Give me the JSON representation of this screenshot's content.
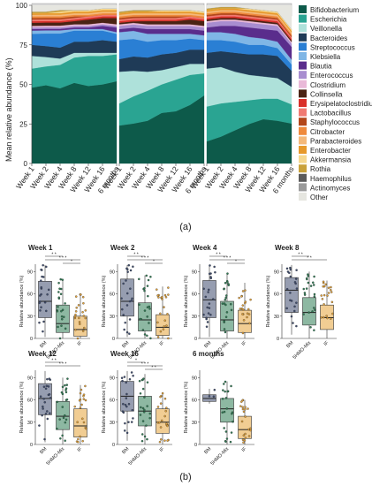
{
  "panel_a_label": "(a)",
  "panel_b_label": "(b)",
  "chart_data": [
    {
      "type": "area",
      "panels": [
        "BM",
        "5HMO-Mix",
        "IF"
      ],
      "x": [
        "Week 1",
        "Week 2",
        "Week 4",
        "Week 8",
        "Week 12",
        "Week 16",
        "6 months"
      ],
      "xlabel": "",
      "ylabel": "Mean relative abundance (%)",
      "yticks": [
        0,
        25,
        50,
        75,
        100
      ],
      "ylim": [
        0,
        100
      ],
      "taxa": [
        "Bifidobacterium",
        "Escherichia",
        "Veillonella",
        "Bacteroides",
        "Streptococcus",
        "Klebsiella",
        "Blautia",
        "Enterococcus",
        "Clostridium",
        "Collinsella",
        "Erysipelatoclostridium",
        "Lactobacillus",
        "Staphylococcus",
        "Citrobacter",
        "Parabacteroides",
        "Enterobacter",
        "Akkermansia",
        "Rothia",
        "Haemophilus",
        "Actinomyces",
        "Other"
      ],
      "colors": [
        "#0d5a4a",
        "#2aa492",
        "#aee1da",
        "#1f3b57",
        "#2a7fd4",
        "#7fb6e6",
        "#5a2d8c",
        "#a88dd0",
        "#e9b9d8",
        "#4a2314",
        "#d9302a",
        "#f07a72",
        "#b3471a",
        "#ef8a3c",
        "#f4b97a",
        "#e7992b",
        "#f6d88f",
        "#c9a13a",
        "#5b5b5b",
        "#9a9a9a",
        "#e6e6e0"
      ],
      "values": {
        "BM": [
          [
            48,
            12,
            8,
            7,
            7,
            2,
            1,
            1,
            1,
            2,
            1,
            1,
            1,
            1,
            1,
            1,
            0,
            1,
            0,
            0,
            4
          ],
          [
            50,
            12,
            6,
            7,
            8,
            2,
            1,
            1,
            1,
            2,
            1,
            1,
            1,
            1,
            1,
            1,
            0,
            1,
            0,
            0,
            4
          ],
          [
            48,
            15,
            4,
            7,
            9,
            2,
            1,
            1,
            1,
            2,
            1,
            1,
            1,
            1,
            1,
            1,
            1,
            1,
            0,
            0,
            3
          ],
          [
            51,
            16,
            3,
            7,
            7,
            1,
            1,
            1,
            1,
            2,
            1,
            1,
            1,
            1,
            1,
            1,
            1,
            0,
            0,
            0,
            3
          ],
          [
            49,
            19,
            2,
            7,
            7,
            1,
            1,
            1,
            1,
            3,
            1,
            1,
            0,
            1,
            1,
            1,
            1,
            0,
            0,
            0,
            3
          ],
          [
            50,
            18,
            2,
            8,
            6,
            1,
            2,
            1,
            1,
            3,
            1,
            1,
            0,
            1,
            1,
            1,
            1,
            0,
            0,
            0,
            2
          ],
          [
            52,
            17,
            1,
            7,
            5,
            1,
            3,
            1,
            1,
            4,
            1,
            1,
            0,
            1,
            1,
            1,
            1,
            0,
            0,
            0,
            2
          ]
        ],
        "5HMO-Mix": [
          [
            24,
            14,
            20,
            8,
            12,
            5,
            2,
            2,
            1,
            1,
            1,
            1,
            1,
            1,
            1,
            1,
            0,
            1,
            0,
            0,
            4
          ],
          [
            25,
            17,
            16,
            9,
            11,
            5,
            2,
            2,
            1,
            1,
            1,
            1,
            1,
            1,
            1,
            1,
            0,
            1,
            0,
            0,
            3
          ],
          [
            27,
            19,
            12,
            9,
            10,
            5,
            3,
            2,
            1,
            2,
            1,
            1,
            1,
            1,
            1,
            1,
            0,
            1,
            0,
            0,
            3
          ],
          [
            32,
            18,
            9,
            10,
            9,
            4,
            3,
            2,
            1,
            2,
            1,
            1,
            1,
            1,
            1,
            1,
            1,
            0,
            0,
            0,
            3
          ],
          [
            33,
            20,
            8,
            9,
            8,
            4,
            3,
            2,
            1,
            2,
            1,
            1,
            1,
            1,
            1,
            1,
            1,
            0,
            0,
            0,
            3
          ],
          [
            37,
            19,
            7,
            9,
            7,
            3,
            3,
            2,
            1,
            3,
            1,
            1,
            0,
            1,
            1,
            1,
            1,
            0,
            0,
            0,
            3
          ],
          [
            43,
            14,
            6,
            9,
            6,
            3,
            3,
            2,
            1,
            3,
            1,
            1,
            0,
            1,
            1,
            1,
            1,
            0,
            0,
            0,
            4
          ]
        ],
        "IF": [
          [
            14,
            22,
            24,
            10,
            8,
            5,
            3,
            3,
            1,
            1,
            1,
            1,
            1,
            1,
            1,
            1,
            0,
            1,
            0,
            0,
            2
          ],
          [
            17,
            21,
            23,
            10,
            7,
            5,
            4,
            3,
            1,
            1,
            1,
            1,
            1,
            1,
            1,
            1,
            0,
            1,
            0,
            0,
            1
          ],
          [
            21,
            18,
            19,
            12,
            7,
            5,
            5,
            3,
            1,
            1,
            1,
            1,
            1,
            1,
            1,
            1,
            0,
            1,
            0,
            0,
            1
          ],
          [
            25,
            15,
            16,
            13,
            6,
            5,
            6,
            3,
            1,
            1,
            1,
            1,
            1,
            1,
            1,
            1,
            1,
            0,
            0,
            0,
            2
          ],
          [
            28,
            13,
            14,
            14,
            6,
            4,
            6,
            3,
            1,
            1,
            1,
            1,
            1,
            1,
            1,
            1,
            1,
            0,
            0,
            0,
            3
          ],
          [
            27,
            14,
            13,
            14,
            5,
            4,
            7,
            3,
            1,
            1,
            1,
            1,
            1,
            1,
            1,
            1,
            1,
            0,
            0,
            0,
            4
          ],
          [
            25,
            12,
            11,
            10,
            4,
            3,
            8,
            2,
            1,
            1,
            1,
            1,
            1,
            1,
            1,
            1,
            1,
            0,
            0,
            0,
            15
          ]
        ]
      }
    },
    {
      "type": "box",
      "ylabel": "Relative abundance (%)",
      "groups": [
        "BM",
        "5HMO-Mix",
        "IF"
      ],
      "group_colors": [
        "#3f4d70",
        "#2f7d55",
        "#e6a43a"
      ],
      "yticks": [
        0,
        30,
        60,
        90
      ],
      "ylim": [
        0,
        100
      ],
      "panels": [
        {
          "title": "Week 1",
          "sig": [
            {
              "a": 0,
              "b": 1,
              "label": "* *"
            },
            {
              "a": 0,
              "b": 2,
              "label": "* * *"
            },
            {
              "a": 1,
              "b": 2,
              "label": "*"
            }
          ],
          "boxes": [
            {
              "min": 2,
              "q1": 28,
              "median": 50,
              "q3": 77,
              "max": 99
            },
            {
              "min": 0,
              "q1": 8,
              "median": 20,
              "q3": 45,
              "max": 80
            },
            {
              "min": 0,
              "q1": 3,
              "median": 12,
              "q3": 30,
              "max": 60
            }
          ]
        },
        {
          "title": "Week 2",
          "sig": [
            {
              "a": 0,
              "b": 1,
              "label": "* *"
            },
            {
              "a": 0,
              "b": 2,
              "label": "* * *"
            },
            {
              "a": 1,
              "b": 2,
              "label": "*"
            }
          ],
          "boxes": [
            {
              "min": 2,
              "q1": 30,
              "median": 50,
              "q3": 80,
              "max": 99
            },
            {
              "min": 0,
              "q1": 10,
              "median": 25,
              "q3": 48,
              "max": 85
            },
            {
              "min": 0,
              "q1": 4,
              "median": 15,
              "q3": 32,
              "max": 70
            }
          ]
        },
        {
          "title": "Week 4",
          "sig": [
            {
              "a": 0,
              "b": 1,
              "label": "* *"
            },
            {
              "a": 0,
              "b": 2,
              "label": "* * *"
            },
            {
              "a": 1,
              "b": 2,
              "label": "*"
            }
          ],
          "boxes": [
            {
              "min": 2,
              "q1": 28,
              "median": 52,
              "q3": 78,
              "max": 99
            },
            {
              "min": 0,
              "q1": 10,
              "median": 25,
              "q3": 50,
              "max": 88
            },
            {
              "min": 0,
              "q1": 8,
              "median": 20,
              "q3": 38,
              "max": 75
            }
          ]
        },
        {
          "title": "Week 8",
          "sig": [
            {
              "a": 0,
              "b": 1,
              "label": "* *"
            },
            {
              "a": 0,
              "b": 2,
              "label": "* *"
            }
          ],
          "boxes": [
            {
              "min": 5,
              "q1": 35,
              "median": 65,
              "q3": 82,
              "max": 99
            },
            {
              "min": 0,
              "q1": 18,
              "median": 35,
              "q3": 55,
              "max": 90
            },
            {
              "min": 0,
              "q1": 12,
              "median": 28,
              "q3": 45,
              "max": 78
            }
          ]
        },
        {
          "title": "Week 12",
          "sig": [
            {
              "a": 0,
              "b": 1,
              "label": "* *"
            },
            {
              "a": 0,
              "b": 2,
              "label": "* * *"
            }
          ],
          "boxes": [
            {
              "min": 3,
              "q1": 40,
              "median": 62,
              "q3": 82,
              "max": 99
            },
            {
              "min": 0,
              "q1": 20,
              "median": 38,
              "q3": 58,
              "max": 90
            },
            {
              "min": 0,
              "q1": 10,
              "median": 25,
              "q3": 48,
              "max": 80
            }
          ]
        },
        {
          "title": "Week 16",
          "sig": [
            {
              "a": 0,
              "b": 1,
              "label": "*"
            },
            {
              "a": 0,
              "b": 2,
              "label": "* * *"
            },
            {
              "a": 1,
              "b": 2,
              "label": "* *"
            }
          ],
          "boxes": [
            {
              "min": 5,
              "q1": 45,
              "median": 65,
              "q3": 85,
              "max": 99
            },
            {
              "min": 0,
              "q1": 25,
              "median": 45,
              "q3": 65,
              "max": 95
            },
            {
              "min": 0,
              "q1": 15,
              "median": 30,
              "q3": 48,
              "max": 70
            }
          ]
        },
        {
          "title": "6 months",
          "sig": [],
          "boxes": [
            {
              "min": 55,
              "q1": 58,
              "median": 62,
              "q3": 67,
              "max": 75
            },
            {
              "min": 0,
              "q1": 30,
              "median": 48,
              "q3": 62,
              "max": 85
            },
            {
              "min": 0,
              "q1": 8,
              "median": 20,
              "q3": 38,
              "max": 60
            }
          ]
        }
      ]
    }
  ]
}
